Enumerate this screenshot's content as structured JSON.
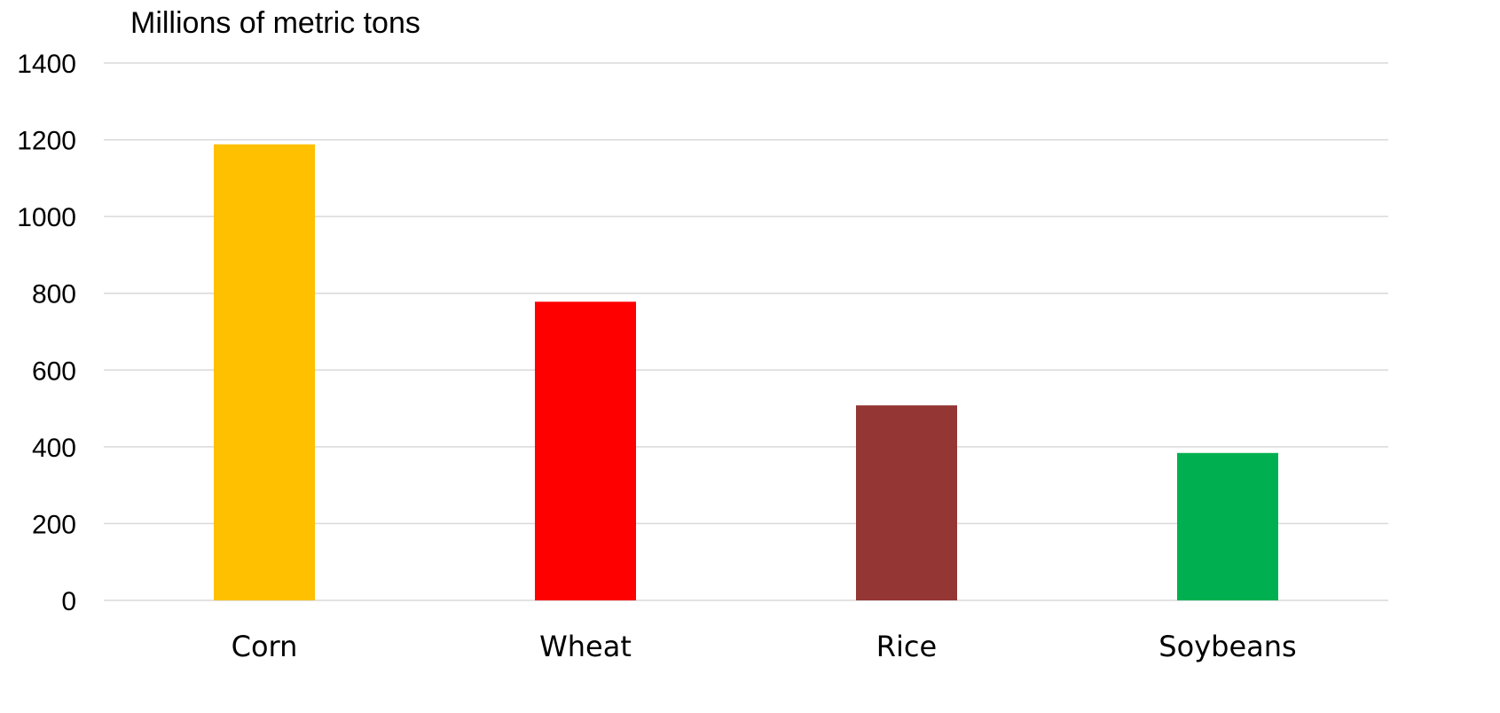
{
  "chart_data": {
    "type": "bar",
    "unit_label": "Millions of metric tons",
    "categories": [
      "Corn",
      "Wheat",
      "Rice",
      "Soybeans"
    ],
    "values": [
      1188,
      778,
      508,
      384
    ],
    "colors": [
      "#FFC000",
      "#FF0000",
      "#943634",
      "#00B050"
    ],
    "ylim": [
      0,
      1400
    ],
    "y_ticks": [
      0,
      200,
      400,
      600,
      800,
      1000,
      1200,
      1400
    ],
    "grid": true,
    "legend": "none",
    "title": "",
    "xlabel": "",
    "ylabel": ""
  }
}
